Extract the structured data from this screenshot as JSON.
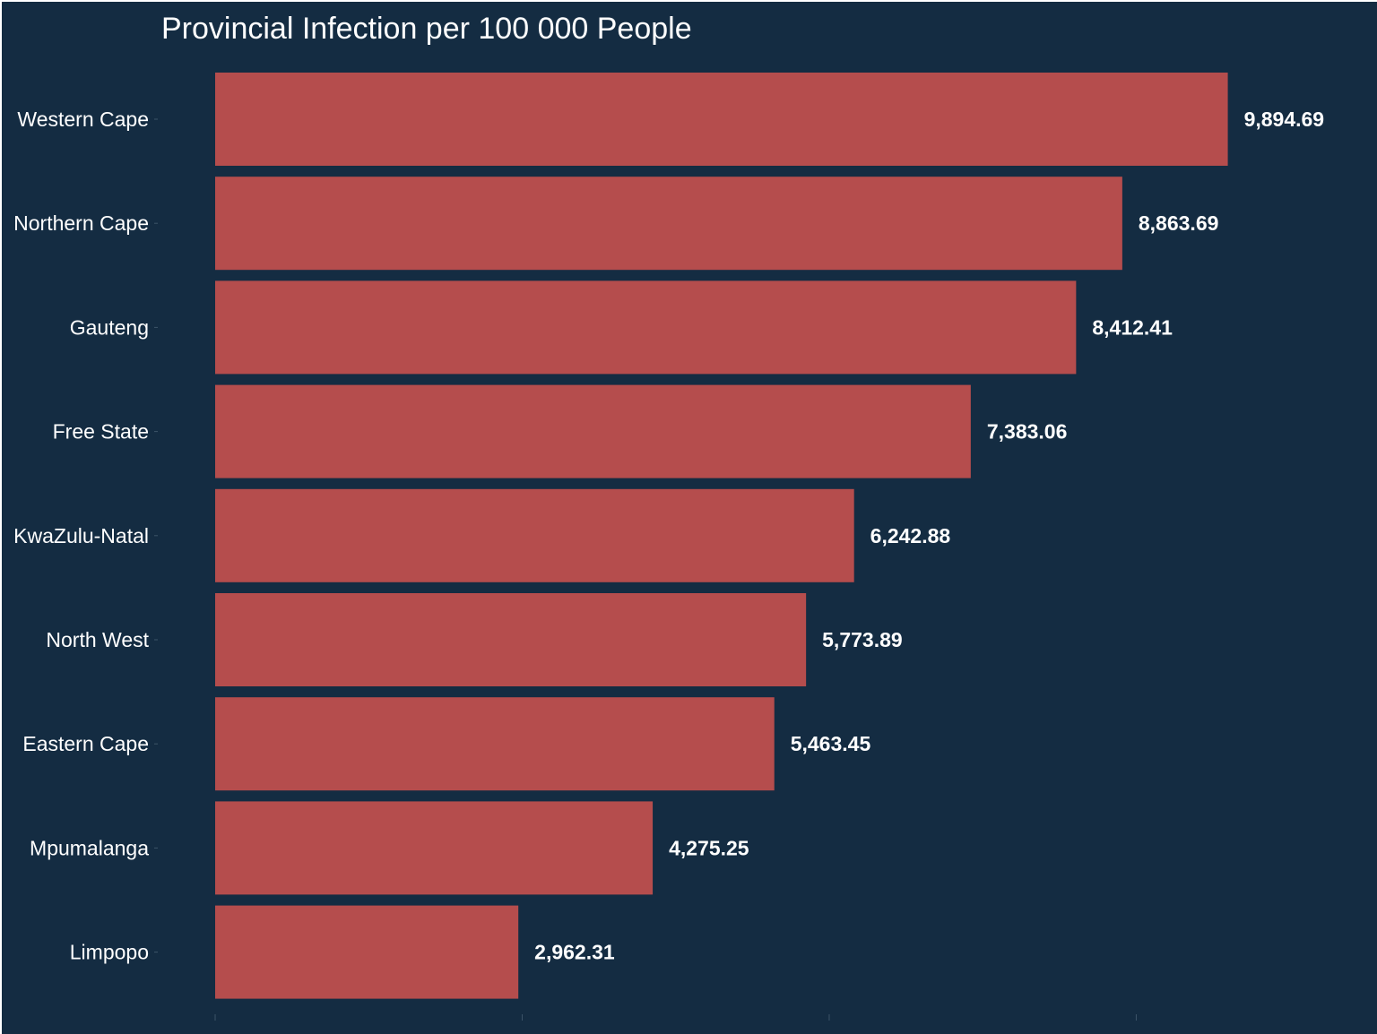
{
  "colors": {
    "background": "#142c42",
    "bar": "#b54d4d",
    "text": "#ffffff",
    "tick": "#3d5468"
  },
  "chart_data": {
    "type": "bar",
    "orientation": "horizontal",
    "title": "Provincial Infection per 100 000 People",
    "xlabel": "",
    "ylabel": "",
    "grid": false,
    "legend": "none",
    "xlim": [
      0,
      11000
    ],
    "x_ticks": [
      0,
      3000,
      6000,
      9000
    ],
    "categories": [
      "Western Cape",
      "Northern Cape",
      "Gauteng",
      "Free State",
      "KwaZulu-Natal",
      "North West",
      "Eastern Cape",
      "Mpumalanga",
      "Limpopo"
    ],
    "values": [
      9894.69,
      8863.69,
      8412.41,
      7383.06,
      6242.88,
      5773.89,
      5463.45,
      4275.25,
      2962.31
    ],
    "value_labels": [
      "9,894.69",
      "8,863.69",
      "8,412.41",
      "7,383.06",
      "6,242.88",
      "5,773.89",
      "5,463.45",
      "4,275.25",
      "2,962.31"
    ]
  }
}
